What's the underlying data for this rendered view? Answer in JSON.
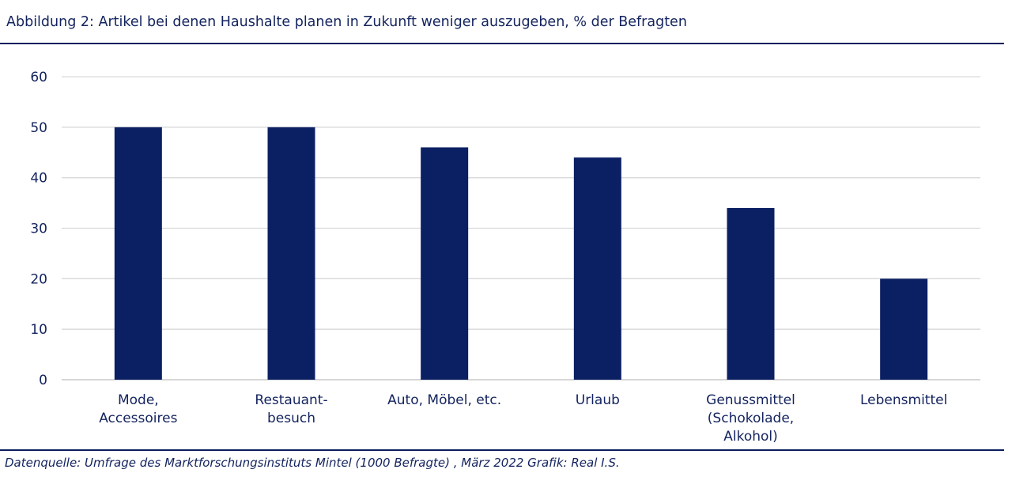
{
  "chart_data": {
    "type": "bar",
    "title": "Abbildung 2: Artikel bei denen Haushalte planen in Zukunft weniger auszugeben, % der Befragten",
    "categories": [
      [
        "Mode,",
        "Accessoires"
      ],
      [
        "Restauant-",
        "besuch"
      ],
      [
        "Auto, Möbel, etc."
      ],
      [
        "Urlaub"
      ],
      [
        "Genussmittel",
        "(Schokolade,",
        "Alkohol)"
      ],
      [
        "Lebensmittel"
      ]
    ],
    "values": [
      50,
      50,
      46,
      44,
      34,
      20
    ],
    "ylim": [
      0,
      60
    ],
    "yticks": [
      0,
      10,
      20,
      30,
      40,
      50,
      60
    ],
    "grid": true,
    "bar_color": "#0b1f63",
    "grid_color": "#d9d9d9",
    "source": "Datenquelle: Umfrage des Marktforschungsinstituts Mintel (1000  Befragte) , März 2022 Grafik: Real I.S."
  }
}
